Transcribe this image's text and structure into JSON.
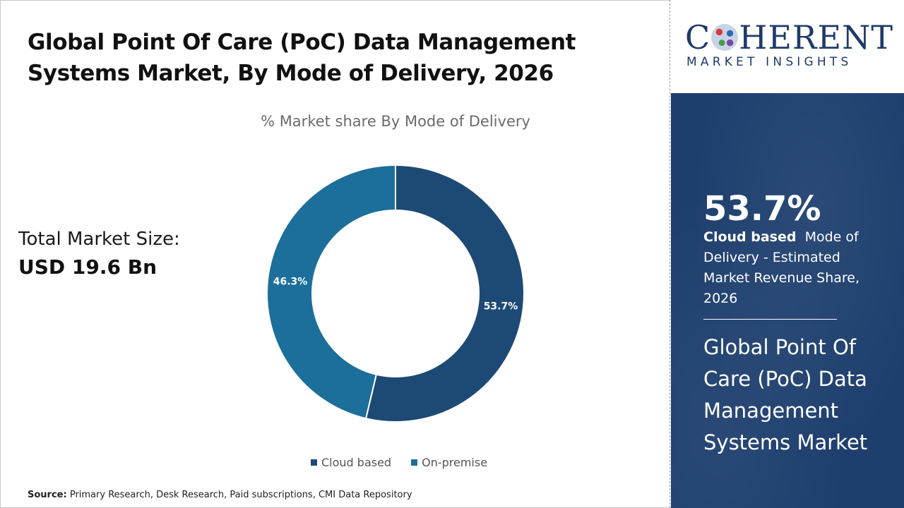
{
  "header": {
    "title": "Global Point Of Care (PoC) Data Management Systems Market, By Mode of Delivery, 2026"
  },
  "market_size": {
    "label": "Total Market Size:",
    "value": "USD 19.6 Bn"
  },
  "source": {
    "label": "Source:",
    "text": "Primary Research, Desk Research, Paid subscriptions, CMI Data Repository"
  },
  "logo": {
    "top_left": "C",
    "top_right": "HERENT",
    "bottom": "MARKET INSIGHTS"
  },
  "highlight": {
    "percent": "53.7%",
    "segment": "Cloud based",
    "description": "Mode of Delivery - Estimated Market Revenue Share, 2026",
    "market_name": "Global Point Of Care (PoC) Data Management Systems Market"
  },
  "colors": {
    "cloud_based": "#1d4a75",
    "on_premise": "#1c6f9a",
    "panel": "#1e3f6e"
  },
  "chart_data": {
    "type": "pie",
    "title": "% Market share By Mode of Delivery",
    "categories": [
      "Cloud based",
      "On-premise"
    ],
    "values": [
      53.7,
      46.3
    ],
    "labels": [
      "53.7%",
      "46.3%"
    ],
    "donut": true,
    "legend": "bottom"
  }
}
